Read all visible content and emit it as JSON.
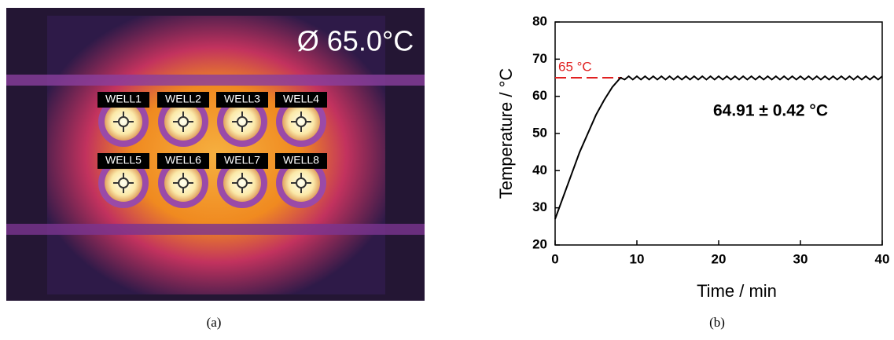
{
  "panel_a": {
    "readout": "Ø 65.0°C",
    "wells": [
      "WELL1",
      "WELL2",
      "WELL3",
      "WELL4",
      "WELL5",
      "WELL6",
      "WELL7",
      "WELL8"
    ],
    "caption": "(a)"
  },
  "chart_data": {
    "type": "line",
    "x_label": "Time / min",
    "y_label": "Temperature / °C",
    "x": [
      0,
      1,
      2,
      3,
      4,
      5,
      6,
      7,
      8,
      8.5,
      9,
      9.5,
      10,
      10.5,
      11,
      11.5,
      12,
      12.5,
      13,
      13.5,
      14,
      14.5,
      15,
      15.5,
      16,
      16.5,
      17,
      17.5,
      18,
      18.5,
      19,
      19.5,
      20,
      20.5,
      21,
      21.5,
      22,
      22.5,
      23,
      23.5,
      24,
      24.5,
      25,
      25.5,
      26,
      26.5,
      27,
      27.5,
      28,
      28.5,
      29,
      29.5,
      30,
      30.5,
      31,
      31.5,
      32,
      32.5,
      33,
      33.5,
      34,
      34.5,
      35,
      35.5,
      36,
      36.5,
      37,
      37.5,
      38,
      38.5,
      39,
      39.5,
      40
    ],
    "values": [
      27,
      33,
      39,
      45,
      50,
      55,
      59,
      62.5,
      65,
      64.5,
      65.4,
      64.5,
      65.4,
      64.5,
      65.4,
      64.5,
      65.4,
      64.5,
      65.4,
      64.5,
      65.4,
      64.5,
      65.4,
      64.5,
      65.4,
      64.5,
      65.4,
      64.5,
      65.4,
      64.5,
      65.4,
      64.5,
      65.4,
      64.5,
      65.4,
      64.5,
      65.4,
      64.5,
      65.4,
      64.5,
      65.4,
      64.5,
      65.4,
      64.5,
      65.4,
      64.5,
      65.4,
      64.5,
      65.4,
      64.5,
      65.4,
      64.5,
      65.4,
      64.5,
      65.4,
      64.5,
      65.4,
      64.5,
      65.4,
      64.5,
      65.4,
      64.5,
      65.4,
      64.5,
      65.4,
      64.5,
      65.4,
      64.5,
      65.4,
      64.5,
      65.4,
      64.5,
      65.4
    ],
    "color": "#000000",
    "xlim": [
      0,
      40
    ],
    "xticks": [
      0,
      10,
      20,
      30,
      40
    ],
    "ylim": [
      20,
      80
    ],
    "yticks": [
      20,
      30,
      40,
      50,
      60,
      70,
      80
    ],
    "reference_line": {
      "value": 65,
      "label": "65 °C",
      "color": "#e02020"
    },
    "annotation": "64.91 ± 0.42 °C",
    "caption": "(b)"
  }
}
